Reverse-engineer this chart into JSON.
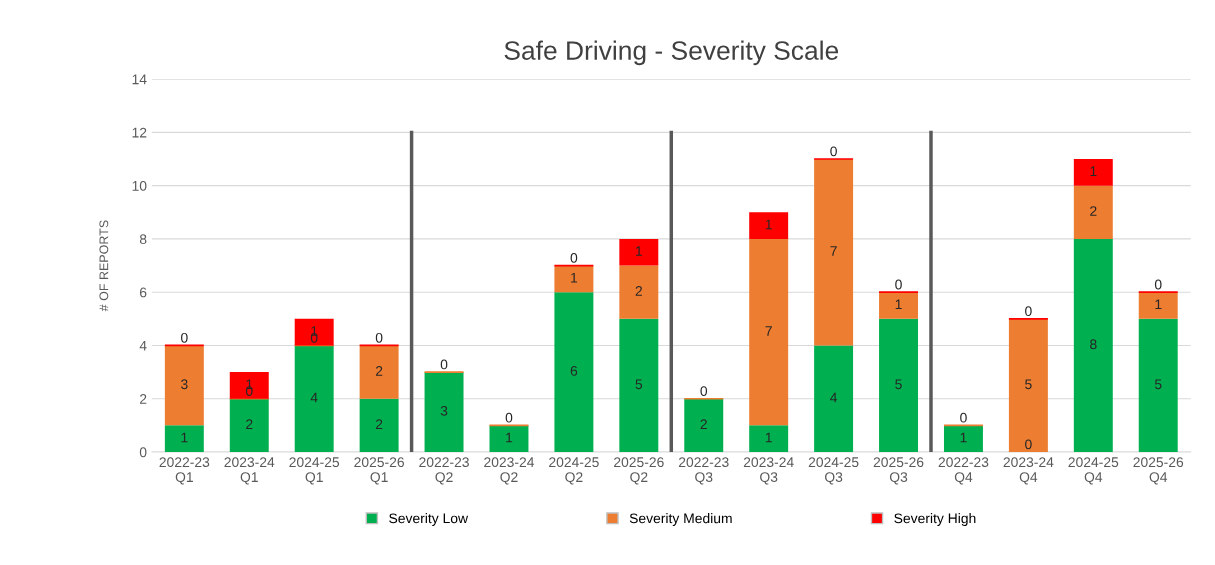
{
  "chart_data": {
    "type": "bar",
    "stacked": true,
    "title": "Safe Driving - Severity Scale",
    "ylabel": "# OF REPORTS",
    "categories": [
      "2022-23\nQ1",
      "2023-24\nQ1",
      "2024-25\nQ1",
      "2025-26\nQ1",
      "2022-23\nQ2",
      "2023-24\nQ2",
      "2024-25\nQ2",
      "2025-26\nQ2",
      "2022-23\nQ3",
      "2023-24\nQ3",
      "2024-25\nQ3",
      "2025-26\nQ3",
      "2022-23\nQ4",
      "2023-24\nQ4",
      "2024-25\nQ4",
      "2025-26\nQ4"
    ],
    "series": [
      {
        "name": "Severity Low",
        "color": "#00b050",
        "values": [
          1,
          2,
          4,
          2,
          3,
          1,
          6,
          5,
          2,
          1,
          4,
          5,
          1,
          0,
          8,
          5
        ],
        "value_labels": [
          "1",
          "2",
          "4",
          "2",
          "3",
          "1",
          "6",
          "5",
          "2",
          "1",
          "4",
          "5",
          "1",
          "0",
          "8",
          "5"
        ]
      },
      {
        "name": "Severity Medium",
        "color": "#ed7d31",
        "values": [
          3,
          0,
          0,
          2,
          0,
          0,
          1,
          2,
          0,
          7,
          7,
          1,
          0,
          5,
          2,
          1
        ],
        "value_labels": [
          "3",
          "0",
          "0",
          "2",
          "0",
          "0",
          "1",
          "2",
          "0",
          "7",
          "7",
          "1",
          "0",
          "5",
          "2",
          "1"
        ]
      },
      {
        "name": "Severity High",
        "color": "#ff0000",
        "values": [
          0,
          1,
          1,
          0,
          null,
          null,
          0,
          1,
          null,
          1,
          0,
          0,
          null,
          0,
          1,
          0
        ],
        "value_labels": [
          "0",
          "1",
          "1",
          "0",
          null,
          null,
          "0",
          "1",
          null,
          "1",
          "0",
          "0",
          null,
          "0",
          "1",
          "0"
        ]
      }
    ],
    "ylim": [
      0,
      14
    ],
    "yticks": [
      0,
      2,
      4,
      6,
      8,
      10,
      12,
      14
    ],
    "grid": "y",
    "legend": "bottom"
  }
}
